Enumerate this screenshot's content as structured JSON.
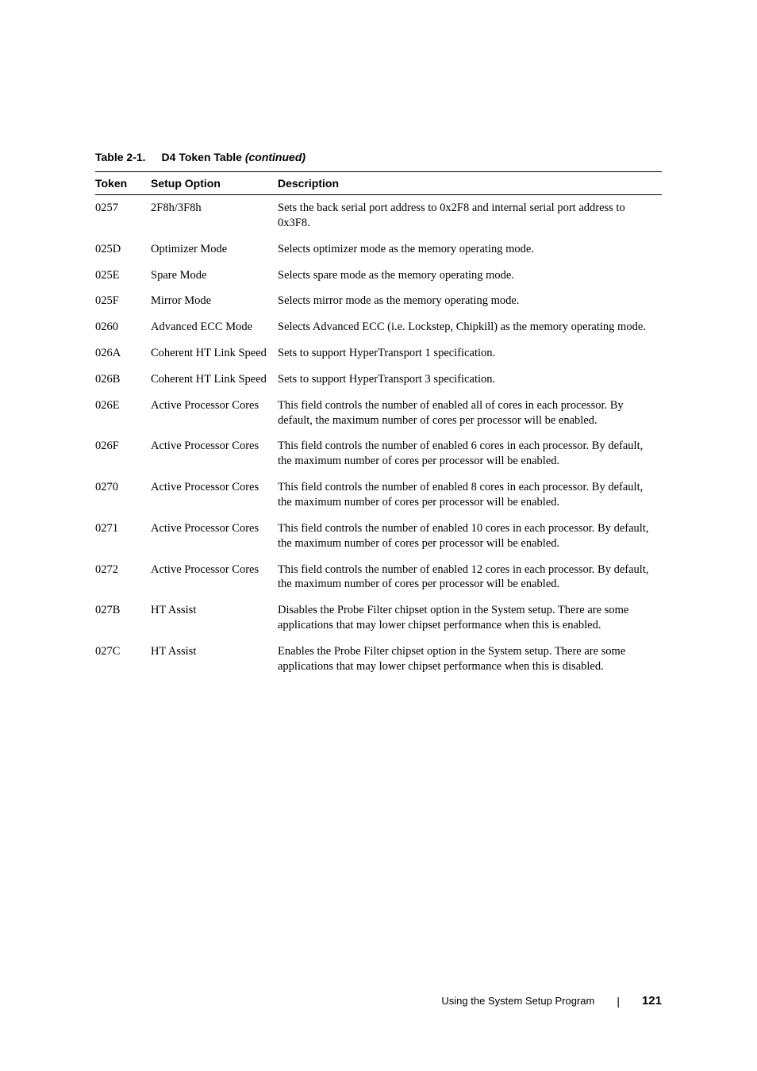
{
  "caption": {
    "label": "Table 2-1.",
    "title": "D4 Token Table",
    "continued": "(continued)"
  },
  "headers": {
    "token": "Token",
    "setup": "Setup Option",
    "description": "Description"
  },
  "rows": [
    {
      "token": "0257",
      "setup": "2F8h/3F8h",
      "description": "Sets the back serial port address to 0x2F8 and internal serial port address to 0x3F8."
    },
    {
      "token": "025D",
      "setup": "Optimizer Mode",
      "description": "Selects optimizer mode as the memory operating mode."
    },
    {
      "token": "025E",
      "setup": "Spare Mode",
      "description": "Selects spare mode as the memory operating mode."
    },
    {
      "token": "025F",
      "setup": "Mirror Mode",
      "description": "Selects mirror mode as the memory operating mode."
    },
    {
      "token": "0260",
      "setup": "Advanced ECC Mode",
      "description": "Selects Advanced ECC (i.e. Lockstep, Chipkill) as the memory operating mode."
    },
    {
      "token": "026A",
      "setup": "Coherent HT Link Speed",
      "description": "Sets to support HyperTransport 1 specification."
    },
    {
      "token": "026B",
      "setup": "Coherent HT Link Speed",
      "description": "Sets to support HyperTransport 3 specification."
    },
    {
      "token": "026E",
      "setup": "Active Processor Cores",
      "description": "This field controls the number of enabled all of cores in each processor. By default, the maximum number of cores per processor will be enabled."
    },
    {
      "token": "026F",
      "setup": "Active Processor Cores",
      "description": "This field controls the number of enabled 6 cores in each processor. By default, the maximum number of cores per processor will be enabled."
    },
    {
      "token": "0270",
      "setup": "Active Processor Cores",
      "description": "This field controls the number of enabled 8 cores in each processor. By default, the maximum number of cores per processor will be enabled."
    },
    {
      "token": "0271",
      "setup": "Active Processor Cores",
      "description": "This field controls the number of enabled 10 cores in each processor. By default, the maximum number of cores per processor will be enabled."
    },
    {
      "token": "0272",
      "setup": "Active Processor Cores",
      "description": "This field controls the number of enabled 12 cores in each processor. By default, the maximum number of cores per processor will be enabled."
    },
    {
      "token": "027B",
      "setup": "HT Assist",
      "description": "Disables the Probe Filter chipset option in the System setup. There are some applications that may lower chipset performance when this is enabled."
    },
    {
      "token": "027C",
      "setup": "HT Assist",
      "description": "Enables the Probe Filter chipset option in the System setup. There are some applications that may lower chipset performance when this is disabled."
    }
  ],
  "footer": {
    "text": "Using the System Setup Program",
    "page": "121"
  }
}
